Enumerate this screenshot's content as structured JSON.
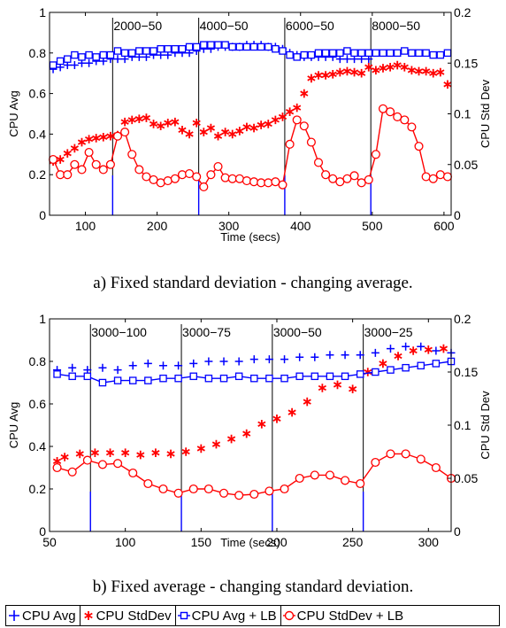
{
  "captions": {
    "a": "a) Fixed standard deviation - changing average.",
    "b": "b) Fixed average - changing standard deviation."
  },
  "legend": [
    {
      "label": "CPU Avg",
      "marker": "plus",
      "color": "#0000ff"
    },
    {
      "label": "CPU StdDev",
      "marker": "star",
      "color": "#ff0000"
    },
    {
      "label": "CPU Avg + LB",
      "marker": "square",
      "color": "#0000ff"
    },
    {
      "label": "CPU StdDev + LB",
      "marker": "circle",
      "color": "#ff0000"
    }
  ],
  "colors": {
    "avg": "#0000ff",
    "std": "#ff0000",
    "divider": "#000000"
  },
  "chart_data": [
    {
      "type": "line",
      "xlabel": "Time (secs)",
      "ylabel": "CPU Avg",
      "y2label": "CPU Std Dev",
      "xlim": [
        50,
        610
      ],
      "ylim": [
        0,
        1
      ],
      "y2lim": [
        0,
        0.2
      ],
      "xticks": [
        "100",
        "200",
        "300",
        "400",
        "500",
        "600"
      ],
      "xtick_values": [
        100,
        200,
        300,
        400,
        500,
        600
      ],
      "yticks": [
        "0",
        "0.2",
        "0.4",
        "0.6",
        "0.8",
        "1"
      ],
      "y2ticks": [
        "0",
        "0.05",
        "0.1",
        "0.15",
        "0.2"
      ],
      "phase_boundaries": [
        138,
        258,
        378,
        498
      ],
      "phase_labels": [
        "2000−50",
        "4000−50",
        "6000−50",
        "8000−50"
      ],
      "series": [
        {
          "name": "CPU Avg",
          "axis": "left",
          "marker": "plus",
          "x": [
            55,
            65,
            75,
            85,
            95,
            105,
            115,
            125,
            135,
            145,
            155,
            165,
            175,
            185,
            195,
            205,
            215,
            225,
            235,
            245,
            255,
            265,
            275,
            285,
            295,
            305,
            315,
            325,
            335,
            345,
            355,
            365,
            375,
            385,
            395,
            405,
            415,
            425,
            435,
            445,
            455,
            465,
            475,
            485,
            495
          ],
          "y": [
            0.72,
            0.73,
            0.74,
            0.74,
            0.75,
            0.75,
            0.76,
            0.76,
            0.77,
            0.77,
            0.77,
            0.78,
            0.78,
            0.78,
            0.79,
            0.79,
            0.79,
            0.8,
            0.8,
            0.8,
            0.81,
            0.82,
            0.82,
            0.83,
            0.83,
            0.83,
            0.83,
            0.84,
            0.84,
            0.84,
            0.83,
            0.83,
            0.82,
            0.8,
            0.79,
            0.78,
            0.78,
            0.78,
            0.78,
            0.78,
            0.77,
            0.77,
            0.77,
            0.77,
            0.77
          ]
        },
        {
          "name": "CPU StdDev",
          "axis": "right",
          "marker": "star",
          "x": [
            55,
            65,
            75,
            85,
            95,
            105,
            115,
            125,
            135,
            145,
            155,
            165,
            175,
            185,
            195,
            205,
            215,
            225,
            235,
            245,
            255,
            265,
            275,
            285,
            295,
            305,
            315,
            325,
            335,
            345,
            355,
            365,
            375,
            385,
            395,
            405,
            415,
            425,
            435,
            445,
            455,
            465,
            475,
            485,
            495,
            505,
            515,
            525,
            535,
            545,
            555,
            565,
            575,
            585,
            595,
            605
          ],
          "y": [
            0.053,
            0.055,
            0.061,
            0.066,
            0.072,
            0.075,
            0.076,
            0.077,
            0.078,
            0.079,
            0.092,
            0.094,
            0.095,
            0.096,
            0.09,
            0.088,
            0.091,
            0.092,
            0.084,
            0.08,
            0.091,
            0.082,
            0.086,
            0.078,
            0.082,
            0.08,
            0.083,
            0.087,
            0.086,
            0.089,
            0.09,
            0.094,
            0.097,
            0.102,
            0.106,
            0.12,
            0.135,
            0.138,
            0.138,
            0.139,
            0.141,
            0.142,
            0.141,
            0.14,
            0.146,
            0.143,
            0.145,
            0.146,
            0.148,
            0.146,
            0.143,
            0.142,
            0.142,
            0.14,
            0.141,
            0.129
          ]
        },
        {
          "name": "CPU Avg + LB",
          "axis": "left",
          "marker": "square",
          "x": [
            55,
            65,
            75,
            85,
            95,
            105,
            115,
            125,
            135,
            145,
            155,
            165,
            175,
            185,
            195,
            205,
            215,
            225,
            235,
            245,
            255,
            265,
            275,
            285,
            295,
            305,
            315,
            325,
            335,
            345,
            355,
            365,
            375,
            385,
            395,
            405,
            415,
            425,
            435,
            445,
            455,
            465,
            475,
            485,
            495,
            505,
            515,
            525,
            535,
            545,
            555,
            565,
            575,
            585,
            595,
            605
          ],
          "y": [
            0.74,
            0.76,
            0.77,
            0.79,
            0.78,
            0.79,
            0.78,
            0.79,
            0.79,
            0.81,
            0.8,
            0.8,
            0.81,
            0.81,
            0.81,
            0.82,
            0.82,
            0.82,
            0.82,
            0.83,
            0.83,
            0.84,
            0.84,
            0.84,
            0.84,
            0.83,
            0.83,
            0.83,
            0.83,
            0.83,
            0.83,
            0.82,
            0.81,
            0.79,
            0.78,
            0.79,
            0.79,
            0.8,
            0.8,
            0.8,
            0.8,
            0.81,
            0.8,
            0.8,
            0.8,
            0.8,
            0.8,
            0.8,
            0.8,
            0.81,
            0.8,
            0.8,
            0.8,
            0.79,
            0.79,
            0.8
          ]
        },
        {
          "name": "CPU StdDev + LB",
          "axis": "right",
          "marker": "circle",
          "x": [
            55,
            65,
            75,
            85,
            95,
            105,
            115,
            125,
            135,
            145,
            155,
            165,
            175,
            185,
            195,
            205,
            215,
            225,
            235,
            245,
            255,
            265,
            275,
            285,
            295,
            305,
            315,
            325,
            335,
            345,
            355,
            365,
            375,
            385,
            395,
            405,
            415,
            425,
            435,
            445,
            455,
            465,
            475,
            485,
            495,
            505,
            515,
            525,
            535,
            545,
            555,
            565,
            575,
            585,
            595,
            605
          ],
          "y": [
            0.055,
            0.04,
            0.04,
            0.05,
            0.045,
            0.062,
            0.05,
            0.045,
            0.05,
            0.078,
            0.082,
            0.06,
            0.045,
            0.038,
            0.035,
            0.032,
            0.034,
            0.036,
            0.04,
            0.041,
            0.038,
            0.028,
            0.04,
            0.048,
            0.037,
            0.036,
            0.036,
            0.034,
            0.033,
            0.032,
            0.032,
            0.033,
            0.03,
            0.07,
            0.094,
            0.088,
            0.072,
            0.052,
            0.04,
            0.036,
            0.033,
            0.036,
            0.039,
            0.032,
            0.035,
            0.06,
            0.105,
            0.102,
            0.097,
            0.094,
            0.087,
            0.068,
            0.038,
            0.036,
            0.04,
            0.038
          ]
        }
      ]
    },
    {
      "type": "line",
      "xlabel": "Time (secs)",
      "ylabel": "CPU Avg",
      "y2label": "CPU Std Dev",
      "xlim": [
        50,
        315
      ],
      "ylim": [
        0,
        1
      ],
      "y2lim": [
        0,
        0.2
      ],
      "xticks": [
        "50",
        "100",
        "150",
        "200",
        "250",
        "300"
      ],
      "xtick_values": [
        50,
        100,
        150,
        200,
        250,
        300
      ],
      "yticks": [
        "0",
        "0.2",
        "0.4",
        "0.6",
        "0.8",
        "1"
      ],
      "y2ticks": [
        "0",
        "0.05",
        "0.1",
        "0.15",
        "0.2"
      ],
      "phase_boundaries": [
        77,
        137,
        197,
        257
      ],
      "phase_labels": [
        "3000−100",
        "3000−75",
        "3000−50",
        "3000−25"
      ],
      "series": [
        {
          "name": "CPU Avg",
          "axis": "left",
          "marker": "plus",
          "x": [
            55,
            65,
            75,
            85,
            95,
            105,
            115,
            125,
            135,
            145,
            155,
            165,
            175,
            185,
            195,
            205,
            215,
            225,
            235,
            245,
            255,
            265,
            275,
            285,
            295,
            305,
            315
          ],
          "y": [
            0.76,
            0.77,
            0.76,
            0.77,
            0.76,
            0.78,
            0.79,
            0.78,
            0.78,
            0.79,
            0.8,
            0.8,
            0.8,
            0.81,
            0.81,
            0.81,
            0.82,
            0.82,
            0.83,
            0.83,
            0.83,
            0.84,
            0.86,
            0.87,
            0.87,
            0.85,
            0.84
          ]
        },
        {
          "name": "CPU StdDev",
          "axis": "right",
          "marker": "star",
          "x": [
            55,
            60,
            70,
            80,
            90,
            100,
            110,
            120,
            130,
            140,
            150,
            160,
            170,
            180,
            190,
            200,
            210,
            220,
            230,
            240,
            250,
            260,
            270,
            280,
            290,
            300,
            310
          ],
          "y": [
            0.066,
            0.07,
            0.073,
            0.074,
            0.074,
            0.074,
            0.072,
            0.074,
            0.073,
            0.075,
            0.078,
            0.082,
            0.087,
            0.092,
            0.101,
            0.106,
            0.112,
            0.122,
            0.135,
            0.138,
            0.134,
            0.15,
            0.158,
            0.165,
            0.17,
            0.171,
            0.172
          ]
        },
        {
          "name": "CPU Avg + LB",
          "axis": "left",
          "marker": "square",
          "x": [
            55,
            65,
            75,
            85,
            95,
            105,
            115,
            125,
            135,
            145,
            155,
            165,
            175,
            185,
            195,
            205,
            215,
            225,
            235,
            245,
            255,
            265,
            275,
            285,
            295,
            305,
            315
          ],
          "y": [
            0.74,
            0.73,
            0.73,
            0.7,
            0.71,
            0.71,
            0.71,
            0.72,
            0.72,
            0.73,
            0.72,
            0.72,
            0.73,
            0.72,
            0.72,
            0.72,
            0.73,
            0.73,
            0.73,
            0.73,
            0.74,
            0.75,
            0.76,
            0.77,
            0.78,
            0.79,
            0.8
          ]
        },
        {
          "name": "CPU StdDev + LB",
          "axis": "right",
          "marker": "circle",
          "x": [
            55,
            65,
            75,
            85,
            95,
            105,
            115,
            125,
            135,
            145,
            155,
            165,
            175,
            185,
            195,
            205,
            215,
            225,
            235,
            245,
            255,
            265,
            275,
            285,
            295,
            305,
            315
          ],
          "y": [
            0.06,
            0.056,
            0.067,
            0.063,
            0.064,
            0.055,
            0.045,
            0.04,
            0.036,
            0.04,
            0.04,
            0.036,
            0.034,
            0.035,
            0.038,
            0.04,
            0.05,
            0.053,
            0.053,
            0.048,
            0.045,
            0.065,
            0.073,
            0.073,
            0.068,
            0.06,
            0.05
          ]
        }
      ]
    }
  ]
}
